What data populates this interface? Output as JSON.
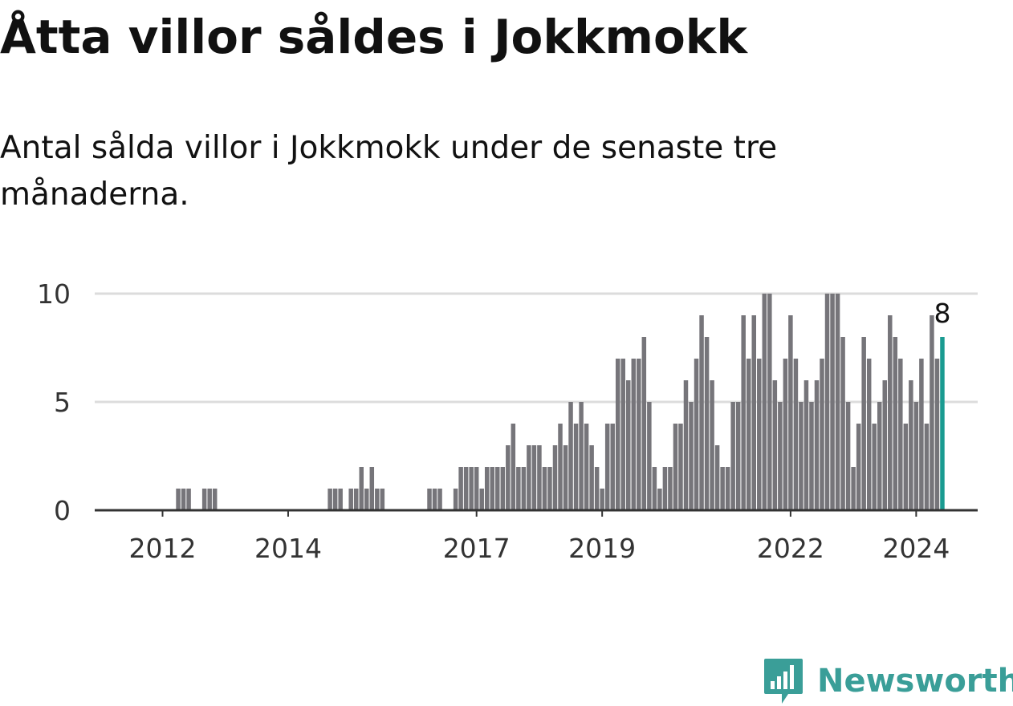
{
  "headline": "Åtta villor såldes i Jokkmokk",
  "subtitle": "Antal sålda villor i Jokkmokk under de senaste tre månaderna.",
  "brand": {
    "name": "Newsworthy",
    "color": "#3a9e98"
  },
  "colors": {
    "bar": "#76757a",
    "highlight": "#1a9b91",
    "grid": "#dcdcdc",
    "axis": "#333333"
  },
  "chart_data": {
    "type": "bar",
    "title": "Åtta villor såldes i Jokkmokk",
    "xlabel": "",
    "ylabel": "",
    "ylim": [
      0,
      10
    ],
    "yticks": [
      0,
      5,
      10
    ],
    "grid": true,
    "start": "2011-01",
    "frequency": "monthly",
    "x_tick_labels": [
      {
        "label": "2012",
        "index": 12
      },
      {
        "label": "2014",
        "index": 36
      },
      {
        "label": "2017",
        "index": 72
      },
      {
        "label": "2019",
        "index": 96
      },
      {
        "label": "2022",
        "index": 132
      },
      {
        "label": "2024",
        "index": 156
      }
    ],
    "values": [
      0,
      0,
      0,
      0,
      0,
      0,
      0,
      0,
      0,
      0,
      0,
      0,
      0,
      0,
      0,
      1,
      1,
      1,
      0,
      0,
      1,
      1,
      1,
      0,
      0,
      0,
      0,
      0,
      0,
      0,
      0,
      0,
      0,
      0,
      0,
      0,
      0,
      0,
      0,
      0,
      0,
      0,
      0,
      0,
      1,
      1,
      1,
      0,
      1,
      1,
      2,
      1,
      2,
      1,
      1,
      0,
      0,
      0,
      0,
      0,
      0,
      0,
      0,
      1,
      1,
      1,
      0,
      0,
      1,
      2,
      2,
      2,
      2,
      1,
      2,
      2,
      2,
      2,
      3,
      4,
      2,
      2,
      3,
      3,
      3,
      2,
      2,
      3,
      4,
      3,
      5,
      4,
      5,
      4,
      3,
      2,
      1,
      4,
      4,
      7,
      7,
      6,
      7,
      7,
      8,
      5,
      2,
      1,
      2,
      2,
      4,
      4,
      6,
      5,
      7,
      9,
      8,
      6,
      3,
      2,
      2,
      5,
      5,
      9,
      7,
      9,
      7,
      10,
      10,
      6,
      5,
      7,
      9,
      7,
      5,
      6,
      5,
      6,
      7,
      10,
      10,
      10,
      8,
      5,
      2,
      4,
      8,
      7,
      4,
      5,
      6,
      9,
      8,
      7,
      4,
      6,
      5,
      7,
      4,
      9,
      7,
      8
    ],
    "highlight": {
      "label": "8",
      "value": 8
    }
  }
}
